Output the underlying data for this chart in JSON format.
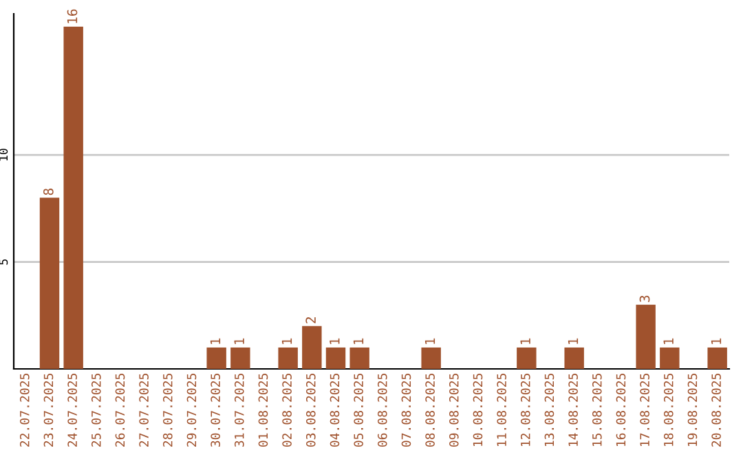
{
  "chart_data": {
    "type": "bar",
    "categories": [
      "22.07.2025",
      "23.07.2025",
      "24.07.2025",
      "25.07.2025",
      "26.07.2025",
      "27.07.2025",
      "28.07.2025",
      "29.07.2025",
      "30.07.2025",
      "31.07.2025",
      "01.08.2025",
      "02.08.2025",
      "03.08.2025",
      "04.08.2025",
      "05.08.2025",
      "06.08.2025",
      "07.08.2025",
      "08.08.2025",
      "09.08.2025",
      "10.08.2025",
      "11.08.2025",
      "12.08.2025",
      "13.08.2025",
      "14.08.2025",
      "15.08.2025",
      "16.08.2025",
      "17.08.2025",
      "18.08.2025",
      "19.08.2025",
      "20.08.2025"
    ],
    "values": [
      0,
      8,
      16,
      0,
      0,
      0,
      0,
      0,
      1,
      1,
      0,
      1,
      2,
      1,
      1,
      0,
      0,
      1,
      0,
      0,
      0,
      1,
      0,
      1,
      0,
      0,
      3,
      1,
      0,
      1
    ],
    "value_labels": [
      null,
      "8",
      "16",
      null,
      null,
      null,
      null,
      null,
      "1",
      "1",
      null,
      "1",
      "2",
      "1",
      "1",
      null,
      null,
      "1",
      null,
      null,
      null,
      "1",
      null,
      "1",
      null,
      null,
      "3",
      "1",
      null,
      "1"
    ],
    "color": "#a0522d",
    "ylim": [
      0,
      16.6
    ],
    "yticks": [
      5,
      10
    ],
    "grid": "y",
    "legend": false
  }
}
